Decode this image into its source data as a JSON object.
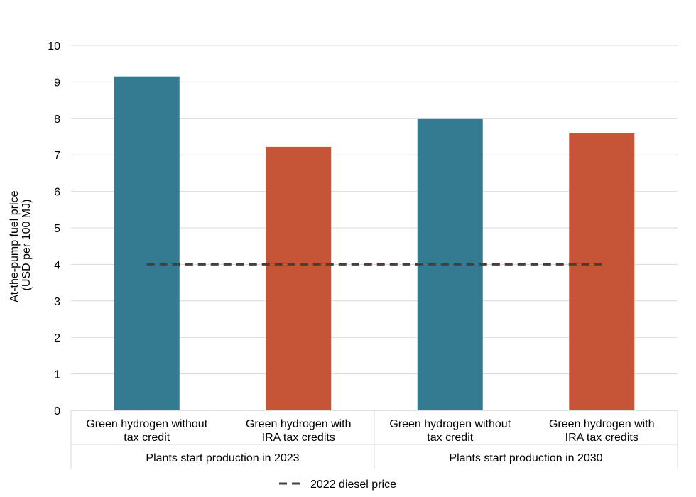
{
  "chart_data": {
    "type": "bar",
    "ylabel_line1": "At-the-pump fuel price",
    "ylabel_line2": "(USD per 100 MJ)",
    "ylim": [
      0,
      10
    ],
    "yticks": [
      "0",
      "1",
      "2",
      "3",
      "4",
      "5",
      "6",
      "7",
      "8",
      "9",
      "10"
    ],
    "bars": [
      {
        "line1": "Green hydrogen without",
        "line2": "tax credit",
        "value": 9.15,
        "color": "#347A91"
      },
      {
        "line1": "Green hydrogen with",
        "line2": "IRA tax credits",
        "value": 7.22,
        "color": "#C65436"
      },
      {
        "line1": "Green hydrogen without",
        "line2": "tax credit",
        "value": 8.0,
        "color": "#347A91"
      },
      {
        "line1": "Green hydrogen with",
        "line2": "IRA tax credits",
        "value": 7.6,
        "color": "#C65436"
      }
    ],
    "groups": [
      "Plants start production in 2023",
      "Plants start production in 2030"
    ],
    "reference_line": {
      "name": "2022 diesel price",
      "value": 4.0,
      "color": "#4A3C37"
    },
    "legend": {
      "position": "bottom-center",
      "label": "2022 diesel price"
    }
  }
}
